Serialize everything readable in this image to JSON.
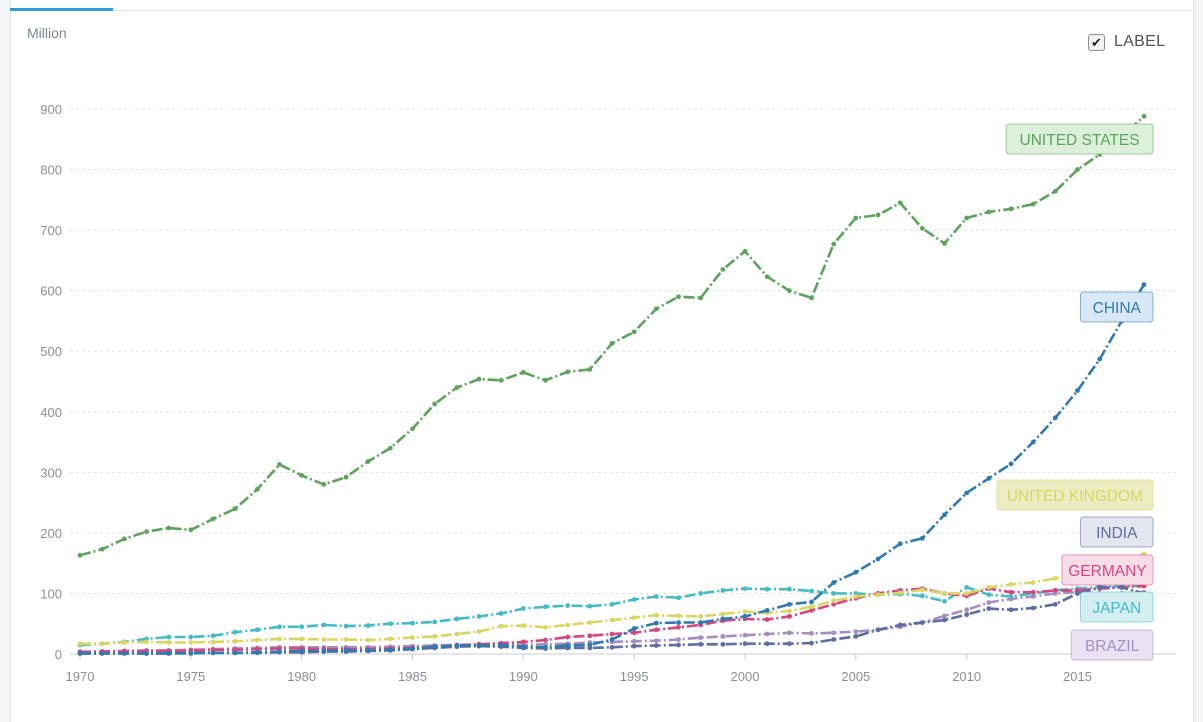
{
  "header": {
    "unit_label": "Million",
    "label_toggle": "LABEL",
    "label_checked": true,
    "check_mark": "✔"
  },
  "chart_data": {
    "type": "line",
    "title": "",
    "xlabel": "",
    "ylabel": "Million",
    "xlim": [
      1970,
      2018
    ],
    "ylim": [
      0,
      900
    ],
    "y_ticks": [
      0,
      100,
      200,
      300,
      400,
      500,
      600,
      700,
      800,
      900
    ],
    "x_ticks": [
      1970,
      1975,
      1980,
      1985,
      1990,
      1995,
      2000,
      2005,
      2010,
      2015
    ],
    "grid": true,
    "x": [
      1970,
      1971,
      1972,
      1973,
      1974,
      1975,
      1976,
      1977,
      1978,
      1979,
      1980,
      1981,
      1982,
      1983,
      1984,
      1985,
      1986,
      1987,
      1988,
      1989,
      1990,
      1991,
      1992,
      1993,
      1994,
      1995,
      1996,
      1997,
      1998,
      1999,
      2000,
      2001,
      2002,
      2003,
      2004,
      2005,
      2006,
      2007,
      2008,
      2009,
      2010,
      2011,
      2012,
      2013,
      2014,
      2015,
      2016,
      2017,
      2018
    ],
    "series": [
      {
        "name": "UNITED STATES",
        "color": "#5ea35c",
        "label_fill": "#dcefdb",
        "values": [
          163,
          173,
          190,
          202,
          208,
          205,
          223,
          240,
          272,
          313,
          295,
          280,
          292,
          318,
          340,
          372,
          413,
          440,
          454,
          452,
          465,
          452,
          466,
          470,
          513,
          532,
          570,
          590,
          588,
          635,
          665,
          623,
          600,
          588,
          677,
          720,
          725,
          745,
          703,
          678,
          720,
          730,
          735,
          743,
          764,
          800,
          825,
          855,
          888
        ]
      },
      {
        "name": "CHINA",
        "color": "#2e7ab2",
        "label_fill": "#d9e8f5",
        "values": [
          1,
          1,
          1,
          1,
          1,
          1,
          2,
          2,
          3,
          4,
          5,
          5,
          6,
          6,
          7,
          9,
          12,
          14,
          14,
          15,
          12,
          11,
          14,
          15,
          24,
          42,
          51,
          52,
          52,
          58,
          62,
          72,
          82,
          86,
          118,
          135,
          157,
          182,
          191,
          230,
          266,
          290,
          314,
          350,
          390,
          435,
          487,
          550,
          610
        ]
      },
      {
        "name": "UNITED KINGDOM",
        "color": "#d8d761",
        "label_fill": "#ececc2",
        "values": [
          17,
          17,
          19,
          20,
          19,
          19,
          20,
          21,
          23,
          25,
          25,
          24,
          24,
          23,
          25,
          27,
          29,
          33,
          37,
          46,
          47,
          44,
          48,
          52,
          56,
          60,
          64,
          63,
          62,
          66,
          70,
          68,
          71,
          78,
          88,
          95,
          98,
          101,
          106,
          100,
          100,
          110,
          115,
          118,
          125,
          128,
          140,
          150,
          165
        ]
      },
      {
        "name": "INDIA",
        "color": "#5e6da3",
        "label_fill": "#e3e5ef",
        "values": [
          1,
          1,
          1,
          1,
          1,
          2,
          2,
          2,
          2,
          3,
          3,
          4,
          4,
          5,
          6,
          8,
          10,
          12,
          13,
          12,
          10,
          9,
          10,
          10,
          11,
          13,
          14,
          15,
          16,
          16,
          17,
          17,
          17,
          18,
          24,
          29,
          40,
          48,
          52,
          56,
          65,
          75,
          73,
          76,
          82,
          100,
          110,
          110,
          100
        ]
      },
      {
        "name": "GERMANY",
        "color": "#d94581",
        "label_fill": "#f8dde8",
        "values": [
          3,
          4,
          5,
          5,
          5,
          6,
          7,
          7,
          8,
          9,
          9,
          8,
          8,
          8,
          9,
          10,
          12,
          14,
          16,
          18,
          20,
          23,
          28,
          30,
          33,
          35,
          40,
          44,
          48,
          55,
          58,
          57,
          62,
          72,
          82,
          92,
          100,
          105,
          108,
          100,
          96,
          108,
          102,
          102,
          105,
          105,
          108,
          110,
          112
        ]
      },
      {
        "name": "JAPAN",
        "color": "#45bcc5",
        "label_fill": "#d3eef0",
        "values": [
          15,
          17,
          20,
          25,
          28,
          28,
          30,
          36,
          40,
          45,
          45,
          48,
          46,
          47,
          50,
          51,
          53,
          58,
          62,
          67,
          75,
          78,
          80,
          79,
          82,
          90,
          95,
          93,
          100,
          105,
          108,
          107,
          107,
          104,
          100,
          100,
          98,
          99,
          96,
          87,
          110,
          98,
          95,
          100,
          105,
          108,
          111,
          112,
          113
        ]
      },
      {
        "name": "BRAZIL",
        "color": "#a58fc0",
        "label_fill": "#e9e2f2",
        "values": [
          4,
          4,
          5,
          6,
          6,
          7,
          8,
          9,
          10,
          11,
          11,
          11,
          11,
          11,
          12,
          13,
          14,
          15,
          16,
          16,
          15,
          16,
          17,
          19,
          20,
          21,
          22,
          24,
          27,
          29,
          31,
          33,
          35,
          34,
          35,
          37,
          40,
          45,
          52,
          63,
          73,
          85,
          91,
          95,
          100,
          102,
          100,
          100,
          102
        ]
      }
    ]
  }
}
